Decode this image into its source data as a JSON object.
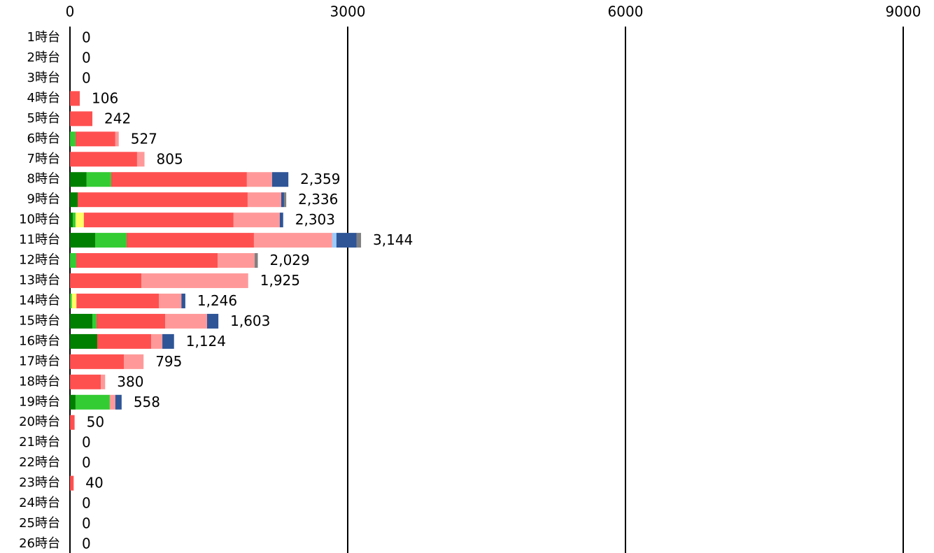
{
  "chart_data": {
    "type": "stacked-bar-horizontal",
    "categories": [
      "1時台",
      "2時台",
      "3時台",
      "4時台",
      "5時台",
      "6時台",
      "7時台",
      "8時台",
      "9時台",
      "10時台",
      "11時台",
      "12時台",
      "13時台",
      "14時台",
      "15時台",
      "16時台",
      "17時台",
      "18時台",
      "19時台",
      "20時台",
      "21時台",
      "22時台",
      "23時台",
      "24時台",
      "25時台",
      "26時台"
    ],
    "series": [
      {
        "color": "#008000",
        "values": [
          0,
          0,
          0,
          0,
          0,
          0,
          0,
          180,
          83,
          30,
          272,
          0,
          0,
          0,
          242,
          295,
          0,
          0,
          60,
          0,
          0,
          0,
          0,
          0,
          0,
          0
        ]
      },
      {
        "color": "#33cc33",
        "values": [
          0,
          0,
          0,
          0,
          0,
          60,
          0,
          265,
          0,
          30,
          340,
          68,
          0,
          20,
          45,
          0,
          0,
          0,
          370,
          0,
          0,
          0,
          0,
          0,
          0,
          0
        ]
      },
      {
        "color": "#ffff66",
        "values": [
          0,
          0,
          0,
          0,
          0,
          0,
          0,
          0,
          0,
          90,
          0,
          0,
          0,
          50,
          0,
          0,
          0,
          0,
          0,
          0,
          0,
          0,
          0,
          0,
          0,
          0
        ]
      },
      {
        "color": "#ff5050",
        "values": [
          0,
          0,
          0,
          106,
          242,
          430,
          725,
          1466,
          1836,
          1617,
          1375,
          1527,
          771,
          892,
          741,
          582,
          582,
          333,
          0,
          50,
          0,
          0,
          40,
          0,
          0,
          0
        ]
      },
      {
        "color": "#ff9999",
        "values": [
          0,
          0,
          0,
          0,
          0,
          37,
          80,
          272,
          363,
          499,
          846,
          400,
          1154,
          242,
          453,
          121,
          213,
          47,
          60,
          0,
          0,
          0,
          0,
          0,
          0,
          0
        ]
      },
      {
        "color": "#99ccff",
        "values": [
          0,
          0,
          0,
          0,
          0,
          0,
          0,
          0,
          0,
          0,
          45,
          0,
          0,
          0,
          0,
          0,
          0,
          0,
          0,
          0,
          0,
          0,
          0,
          0,
          0,
          0
        ]
      },
      {
        "color": "#2f5597",
        "values": [
          0,
          0,
          0,
          0,
          0,
          0,
          0,
          176,
          30,
          37,
          219,
          0,
          0,
          42,
          122,
          126,
          0,
          0,
          68,
          0,
          0,
          0,
          0,
          0,
          0,
          0
        ]
      },
      {
        "color": "#808080",
        "values": [
          0,
          0,
          0,
          0,
          0,
          0,
          0,
          0,
          24,
          0,
          47,
          34,
          0,
          0,
          0,
          0,
          0,
          0,
          0,
          0,
          0,
          0,
          0,
          0,
          0,
          0
        ]
      }
    ],
    "totals": [
      0,
      0,
      0,
      106,
      242,
      527,
      805,
      2359,
      2336,
      2303,
      3144,
      2029,
      1925,
      1246,
      1603,
      1124,
      795,
      380,
      558,
      50,
      0,
      0,
      40,
      0,
      0,
      0
    ],
    "total_labels": [
      "0",
      "0",
      "0",
      "106",
      "242",
      "527",
      "805",
      "2,359",
      "2,336",
      "2,303",
      "3,144",
      "2,029",
      "1,925",
      "1,246",
      "1,603",
      "1,124",
      "795",
      "380",
      "558",
      "50",
      "0",
      "0",
      "40",
      "0",
      "0",
      "0"
    ],
    "xlim": [
      0,
      9000
    ],
    "xticks": [
      0,
      3000,
      6000,
      9000
    ],
    "grid": true
  }
}
